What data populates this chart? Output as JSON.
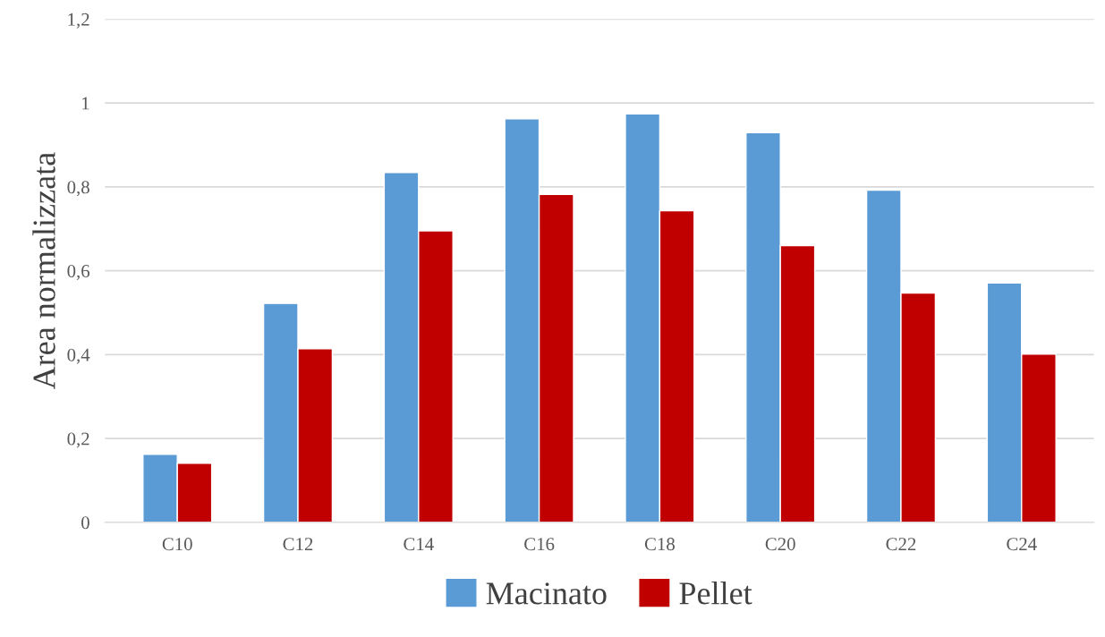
{
  "chart_data": {
    "type": "bar",
    "ylabel": "Area normalizzata",
    "categories": [
      "C10",
      "C12",
      "C14",
      "C16",
      "C18",
      "C20",
      "C22",
      "C24"
    ],
    "series": [
      {
        "name": "Macinato",
        "color": "#5b9bd5",
        "values": [
          0.162,
          0.522,
          0.834,
          0.962,
          0.974,
          0.929,
          0.792,
          0.571
        ]
      },
      {
        "name": "Pellet",
        "color": "#c00000",
        "values": [
          0.141,
          0.414,
          0.695,
          0.782,
          0.743,
          0.66,
          0.547,
          0.401
        ]
      }
    ],
    "ylim": [
      0,
      1.2
    ],
    "yticks": [
      {
        "value": 0,
        "label": "0"
      },
      {
        "value": 0.2,
        "label": "0,2"
      },
      {
        "value": 0.4,
        "label": "0,4"
      },
      {
        "value": 0.6,
        "label": "0,6"
      },
      {
        "value": 0.8,
        "label": "0,8"
      },
      {
        "value": 1,
        "label": "1"
      },
      {
        "value": 1.2,
        "label": "1,2"
      }
    ],
    "grid": "y",
    "legend": "bottom"
  }
}
